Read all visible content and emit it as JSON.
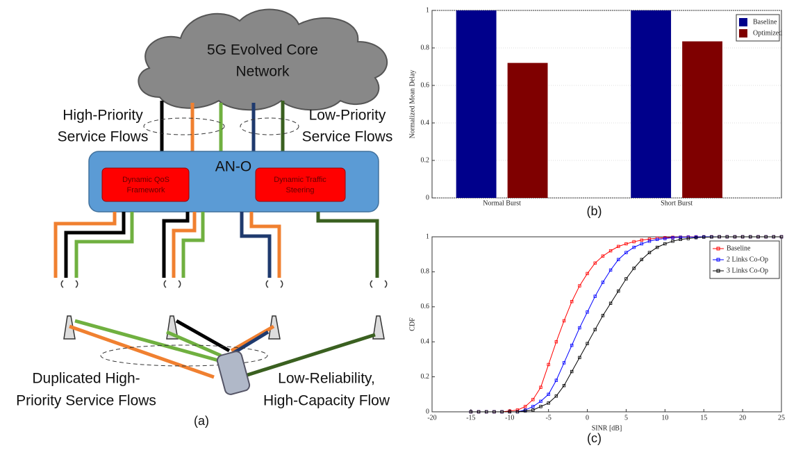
{
  "diagram": {
    "cloud": [
      "5G Evolved Core",
      "Network"
    ],
    "high_priority": [
      "High-Priority",
      "Service Flows"
    ],
    "low_priority": [
      "Low-Priority",
      "Service Flows"
    ],
    "box": "AN-O",
    "qos": [
      "Dynamic QoS",
      "Framework"
    ],
    "steering": [
      "Dynamic Traffic",
      "Steering"
    ],
    "duplicated": [
      "Duplicated High-",
      "Priority Service Flows"
    ],
    "low_reliability": [
      "Low-Reliability,",
      "High-Capacity  Flow"
    ],
    "label": "(a)"
  },
  "chart_data": [
    {
      "type": "bar",
      "label": "(b)",
      "ylabel": "Normalized Mean Delay",
      "categories": [
        "Normal Burst",
        "Short Burst"
      ],
      "series": [
        {
          "name": "Baseline",
          "color": "#00008b",
          "values": [
            1,
            1
          ]
        },
        {
          "name": "Optimized",
          "color": "#7f0000",
          "values": [
            0.72,
            0.835
          ]
        }
      ],
      "ylim": [
        0,
        1
      ],
      "yticks": [
        0,
        0.2,
        0.4,
        0.6,
        0.8,
        1
      ],
      "grid": true,
      "legend": "top-right"
    },
    {
      "type": "line",
      "label": "(c)",
      "xlabel": "SINR [dB]",
      "ylabel": "CDF",
      "x": [
        -15,
        -14,
        -13,
        -12,
        -11,
        -10,
        -9,
        -8,
        -7,
        -6,
        -5,
        -4,
        -3,
        -2,
        -1,
        0,
        1,
        2,
        3,
        4,
        5,
        6,
        7,
        8,
        9,
        10,
        11,
        12,
        13,
        14,
        15,
        16,
        17,
        18,
        19,
        20,
        21,
        22,
        23,
        24,
        25
      ],
      "series": [
        {
          "name": "Baseline",
          "color": "#ff0000",
          "values": [
            0,
            0,
            0,
            0,
            0,
            0.005,
            0.01,
            0.03,
            0.07,
            0.14,
            0.27,
            0.4,
            0.52,
            0.63,
            0.72,
            0.79,
            0.85,
            0.89,
            0.92,
            0.945,
            0.96,
            0.972,
            0.981,
            0.987,
            0.992,
            0.995,
            0.997,
            0.998,
            0.999,
            1,
            1,
            1,
            1,
            1,
            1,
            1,
            1,
            1,
            1,
            1,
            1
          ]
        },
        {
          "name": "2 Links Co-Op",
          "color": "#0000ff",
          "values": [
            0,
            0,
            0,
            0,
            0,
            0,
            0,
            0.01,
            0.03,
            0.06,
            0.1,
            0.18,
            0.28,
            0.38,
            0.48,
            0.57,
            0.66,
            0.74,
            0.81,
            0.87,
            0.91,
            0.94,
            0.96,
            0.975,
            0.985,
            0.99,
            0.995,
            0.997,
            0.998,
            0.999,
            1,
            1,
            1,
            1,
            1,
            1,
            1,
            1,
            1,
            1,
            1
          ]
        },
        {
          "name": "3 Links Co-Op",
          "color": "#000000",
          "values": [
            0,
            0,
            0,
            0,
            0,
            0,
            0,
            0.005,
            0.01,
            0.03,
            0.05,
            0.09,
            0.15,
            0.23,
            0.31,
            0.39,
            0.47,
            0.55,
            0.62,
            0.69,
            0.76,
            0.82,
            0.87,
            0.91,
            0.94,
            0.96,
            0.975,
            0.985,
            0.99,
            0.995,
            0.998,
            0.999,
            1,
            1,
            1,
            1,
            1,
            1,
            1,
            1,
            1
          ]
        }
      ],
      "xlim": [
        -20,
        25
      ],
      "xticks": [
        -20,
        -15,
        -10,
        -5,
        0,
        5,
        10,
        15,
        20,
        25
      ],
      "ylim": [
        0,
        1
      ],
      "yticks": [
        0,
        0.2,
        0.4,
        0.6,
        0.8,
        1
      ],
      "grid": false,
      "legend": "top-right"
    }
  ]
}
